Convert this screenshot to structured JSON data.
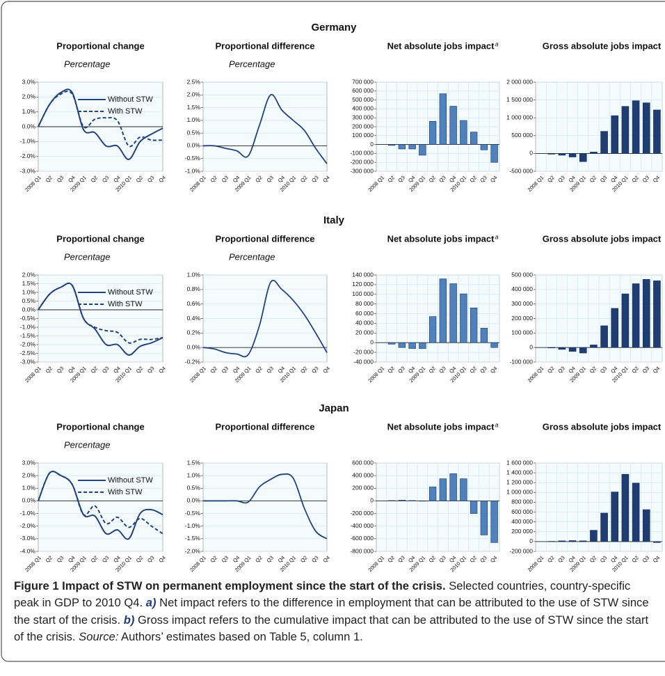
{
  "sections": [
    {
      "title": "Germany"
    },
    {
      "title": "Italy"
    },
    {
      "title": "Japan"
    }
  ],
  "chart_data": [
    {
      "type": "line",
      "title": "Proportional change",
      "subtitle": "Percentage",
      "legend": "upper right",
      "grid": true,
      "categories": [
        "2008 Q1",
        "Q2",
        "Q3",
        "Q4",
        "2009 Q1",
        "Q2",
        "Q3",
        "Q4",
        "2010 Q1",
        "Q2",
        "Q3",
        "Q4"
      ],
      "series": [
        {
          "name": "Without STW",
          "color": "#26427c",
          "line_style": "solid",
          "values": [
            0,
            1.5,
            2.3,
            2.3,
            -0.2,
            -0.4,
            -1.3,
            -1.3,
            -2.2,
            -1.0,
            -0.5,
            -0.1
          ]
        },
        {
          "name": "With STW",
          "color": "#26427c",
          "line_style": "dashed",
          "values": [
            0,
            1.5,
            2.2,
            2.2,
            0.0,
            0.5,
            0.6,
            0.4,
            -1.3,
            -0.7,
            -0.9,
            -0.9
          ]
        }
      ],
      "ylim": [
        -3,
        3
      ],
      "yticks": [
        {
          "value": -3,
          "label": "-3.0%"
        },
        {
          "value": -2,
          "label": "-2.0%"
        },
        {
          "value": -1,
          "label": "-1.0%"
        },
        {
          "value": 0,
          "label": "0.0%"
        },
        {
          "value": 1,
          "label": "1.0%"
        },
        {
          "value": 2,
          "label": "2.0%"
        },
        {
          "value": 3,
          "label": "3.0%"
        }
      ]
    },
    {
      "type": "line",
      "title": "Proportional difference",
      "subtitle": "Percentage",
      "grid": true,
      "color": "#26427c",
      "categories": [
        "2008 Q1",
        "Q2",
        "Q3",
        "Q4",
        "2009 Q1",
        "Q2",
        "Q3",
        "Q4",
        "2010 Q1",
        "Q2",
        "Q3",
        "Q4"
      ],
      "values": [
        0,
        0,
        -0.1,
        -0.2,
        -0.4,
        0.8,
        2.0,
        1.4,
        1.0,
        0.6,
        -0.1,
        -0.7
      ],
      "ylim": [
        -1,
        2.5
      ],
      "yticks": [
        {
          "value": -1,
          "label": "-1.0%"
        },
        {
          "value": -0.5,
          "label": "-0.5%"
        },
        {
          "value": 0,
          "label": "0.0%"
        },
        {
          "value": 0.5,
          "label": "0.5%"
        },
        {
          "value": 1,
          "label": "1.0%"
        },
        {
          "value": 1.5,
          "label": "1.5%"
        },
        {
          "value": 2,
          "label": "2.0%"
        },
        {
          "value": 2.5,
          "label": "2.5%"
        }
      ]
    },
    {
      "type": "bar",
      "title": "Net absolute jobs impact",
      "title_note": "a",
      "grid": true,
      "color": "#4f81bd",
      "categories": [
        "2008 Q1",
        "Q2",
        "Q3",
        "Q4",
        "2009 Q1",
        "Q2",
        "Q3",
        "Q4",
        "2010 Q1",
        "Q2",
        "Q3",
        "Q4"
      ],
      "values": [
        0,
        -10000,
        -50000,
        -50000,
        -120000,
        260000,
        570000,
        430000,
        270000,
        140000,
        -60000,
        -200000
      ],
      "ylim": [
        -300000,
        700000
      ],
      "yticks": [
        {
          "value": -300000,
          "label": "-300 000"
        },
        {
          "value": -200000,
          "label": "-200 000"
        },
        {
          "value": -100000,
          "label": "-100 000"
        },
        0,
        {
          "value": 100000,
          "label": "100 000"
        },
        {
          "value": 200000,
          "label": "200 000"
        },
        {
          "value": 300000,
          "label": "300 000"
        },
        {
          "value": 400000,
          "label": "400 000"
        },
        {
          "value": 500000,
          "label": "500 000"
        },
        {
          "value": 600000,
          "label": "600 000"
        },
        {
          "value": 700000,
          "label": "700 000"
        }
      ]
    },
    {
      "type": "bar",
      "title": "Gross absolute jobs impact",
      "grid": true,
      "color": "#1f3c73",
      "categories": [
        "2008 Q1",
        "Q2",
        "Q3",
        "Q4",
        "2009 Q1",
        "Q2",
        "Q3",
        "Q4",
        "2010 Q1",
        "Q2",
        "Q3",
        "Q4"
      ],
      "values": [
        0,
        -20000,
        -50000,
        -100000,
        -230000,
        40000,
        620000,
        1060000,
        1320000,
        1480000,
        1420000,
        1220000
      ],
      "ylim": [
        -500000,
        2000000
      ],
      "yticks": [
        {
          "value": -500000,
          "label": "-500 000"
        },
        0,
        {
          "value": 500000,
          "label": "500 000"
        },
        {
          "value": 1000000,
          "label": "1 000 000"
        },
        {
          "value": 1500000,
          "label": "1 500 000"
        },
        {
          "value": 2000000,
          "label": "2 000 000"
        }
      ]
    },
    {
      "type": "line",
      "title": "Proportional change",
      "subtitle": "Percentage",
      "legend": "upper right",
      "grid": true,
      "categories": [
        "2008 Q1",
        "Q2",
        "Q3",
        "Q4",
        "2009 Q1",
        "Q2",
        "Q3",
        "Q4",
        "2010 Q1",
        "Q2",
        "Q3",
        "Q4"
      ],
      "series": [
        {
          "name": "Without STW",
          "color": "#26427c",
          "line_style": "solid",
          "values": [
            0,
            0.9,
            1.3,
            1.4,
            -0.5,
            -1.1,
            -2.0,
            -2.0,
            -2.6,
            -2.1,
            -1.9,
            -1.6
          ]
        },
        {
          "name": "With STW",
          "color": "#26427c",
          "line_style": "dashed",
          "values": [
            0,
            0.9,
            1.3,
            1.4,
            -0.5,
            -1.0,
            -1.2,
            -1.3,
            -1.9,
            -1.7,
            -1.7,
            -1.6
          ]
        }
      ],
      "ylim": [
        -3,
        2
      ],
      "yticks": [
        {
          "value": -3,
          "label": "-3.0%"
        },
        {
          "value": -2.5,
          "label": "-2.5%"
        },
        {
          "value": -2,
          "label": "-2.0%"
        },
        {
          "value": -1.5,
          "label": "-1.5%"
        },
        {
          "value": -1,
          "label": "-1.0%"
        },
        {
          "value": -0.5,
          "label": "-0.5%"
        },
        {
          "value": 0,
          "label": "0.0%"
        },
        {
          "value": 0.5,
          "label": "0.5%"
        },
        {
          "value": 1,
          "label": "1.0%"
        },
        {
          "value": 1.5,
          "label": "1.5%"
        },
        {
          "value": 2,
          "label": "2.0%"
        }
      ]
    },
    {
      "type": "line",
      "title": "Proportional difference",
      "subtitle": "Percentage",
      "grid": true,
      "color": "#26427c",
      "categories": [
        "2008 Q1",
        "Q2",
        "Q3",
        "Q4",
        "2009 Q1",
        "Q2",
        "Q3",
        "Q4",
        "2010 Q1",
        "Q2",
        "Q3",
        "Q4"
      ],
      "values": [
        0,
        -0.02,
        -0.07,
        -0.09,
        -0.1,
        0.3,
        0.9,
        0.8,
        0.65,
        0.45,
        0.2,
        -0.07
      ],
      "ylim": [
        -0.2,
        1
      ],
      "yticks": [
        {
          "value": -0.2,
          "label": "-0.2%"
        },
        {
          "value": 0,
          "label": "0.0%"
        },
        {
          "value": 0.2,
          "label": "0.2%"
        },
        {
          "value": 0.4,
          "label": "0.4%"
        },
        {
          "value": 0.6,
          "label": "0.6%"
        },
        {
          "value": 0.8,
          "label": "0.8%"
        },
        {
          "value": 1,
          "label": "1.0%"
        }
      ]
    },
    {
      "type": "bar",
      "title": "Net absolute jobs impact",
      "title_note": "a",
      "grid": true,
      "color": "#4f81bd",
      "categories": [
        "2008 Q1",
        "Q2",
        "Q3",
        "Q4",
        "2009 Q1",
        "Q2",
        "Q3",
        "Q4",
        "2010 Q1",
        "Q2",
        "Q3",
        "Q4"
      ],
      "values": [
        0,
        -3000,
        -10000,
        -12000,
        -12000,
        54000,
        132000,
        122000,
        101000,
        72000,
        30000,
        -10000
      ],
      "ylim": [
        -40000,
        140000
      ],
      "yticks": [
        {
          "value": -40000,
          "label": "-40 000"
        },
        {
          "value": -20000,
          "label": "-20 000"
        },
        0,
        {
          "value": 20000,
          "label": "20 000"
        },
        {
          "value": 40000,
          "label": "40 000"
        },
        {
          "value": 60000,
          "label": "60 000"
        },
        {
          "value": 80000,
          "label": "80 000"
        },
        {
          "value": 100000,
          "label": "100 000"
        },
        {
          "value": 120000,
          "label": "120 000"
        },
        {
          "value": 140000,
          "label": "140 000"
        }
      ]
    },
    {
      "type": "bar",
      "title": "Gross absolute jobs impact",
      "grid": true,
      "color": "#1f3c73",
      "categories": [
        "2008 Q1",
        "Q2",
        "Q3",
        "Q4",
        "2009 Q1",
        "Q2",
        "Q3",
        "Q4",
        "2010 Q1",
        "Q2",
        "Q3",
        "Q4"
      ],
      "values": [
        0,
        -3000,
        -13000,
        -27000,
        -38000,
        18000,
        150000,
        270000,
        370000,
        440000,
        470000,
        460000
      ],
      "ylim": [
        -100000,
        500000
      ],
      "yticks": [
        {
          "value": -100000,
          "label": "-100 000"
        },
        0,
        {
          "value": 100000,
          "label": "100 000"
        },
        {
          "value": 200000,
          "label": "200 000"
        },
        {
          "value": 300000,
          "label": "300 000"
        },
        {
          "value": 400000,
          "label": "400 000"
        },
        {
          "value": 500000,
          "label": "500 000"
        }
      ]
    },
    {
      "type": "line",
      "title": "Proportional change",
      "subtitle": "Percentage",
      "legend": "upper right",
      "grid": true,
      "categories": [
        "2008 Q1",
        "Q2",
        "Q3",
        "Q4",
        "2009 Q1",
        "Q2",
        "Q3",
        "Q4",
        "2010 Q1",
        "Q2",
        "Q3",
        "Q4"
      ],
      "series": [
        {
          "name": "Without STW",
          "color": "#26427c",
          "line_style": "solid",
          "values": [
            0,
            2.2,
            2.0,
            1.3,
            -1.1,
            -1.2,
            -2.6,
            -2.3,
            -3.0,
            -1.0,
            -0.7,
            -1.1
          ]
        },
        {
          "name": "With STW",
          "color": "#26427c",
          "line_style": "dashed",
          "values": [
            0,
            2.2,
            2.0,
            1.3,
            -1.1,
            -0.4,
            -1.8,
            -1.3,
            -2.1,
            -1.4,
            -2.0,
            -2.6
          ]
        }
      ],
      "ylim": [
        -4,
        3
      ],
      "yticks": [
        {
          "value": -4,
          "label": "-4.0%"
        },
        {
          "value": -3,
          "label": "-3.0%"
        },
        {
          "value": -2,
          "label": "-2.0%"
        },
        {
          "value": -1,
          "label": "-1.0%"
        },
        {
          "value": 0,
          "label": "0.0%"
        },
        {
          "value": 1,
          "label": "1.0%"
        },
        {
          "value": 2,
          "label": "2.0%"
        },
        {
          "value": 3,
          "label": "3.0%"
        }
      ]
    },
    {
      "type": "line",
      "title": "Proportional difference",
      "grid": true,
      "color": "#26427c",
      "categories": [
        "2008 Q1",
        "Q2",
        "Q3",
        "Q4",
        "2009 Q1",
        "Q2",
        "Q3",
        "Q4",
        "2010 Q1",
        "Q2",
        "Q3",
        "Q4"
      ],
      "values": [
        0,
        0,
        0,
        0,
        -0.05,
        0.55,
        0.85,
        1.05,
        0.9,
        -0.3,
        -1.2,
        -1.5
      ],
      "ylim": [
        -2,
        1.5
      ],
      "yticks": [
        {
          "value": -2,
          "label": "-2.0%"
        },
        {
          "value": -1.5,
          "label": "-1.5%"
        },
        {
          "value": -1,
          "label": "-1.0%"
        },
        {
          "value": -0.5,
          "label": "-0.5%"
        },
        {
          "value": 0,
          "label": "0.0%"
        },
        {
          "value": 0.5,
          "label": "0.5%"
        },
        {
          "value": 1,
          "label": "1.0%"
        },
        {
          "value": 1.5,
          "label": "1.5%"
        }
      ]
    },
    {
      "type": "bar",
      "title": "Net absolute jobs impact",
      "title_note": "a",
      "grid": true,
      "color": "#4f81bd",
      "categories": [
        "2008 Q1",
        "Q2",
        "Q3",
        "Q4",
        "2009 Q1",
        "Q2",
        "Q3",
        "Q4",
        "2010 Q1",
        "Q2",
        "Q3",
        "Q4"
      ],
      "values": [
        0,
        5000,
        10000,
        5000,
        -5000,
        220000,
        350000,
        430000,
        350000,
        -200000,
        -540000,
        -660000
      ],
      "ylim": [
        -800000,
        600000
      ],
      "yticks": [
        {
          "value": -800000,
          "label": "-800 000"
        },
        {
          "value": -600000,
          "label": "-600 000"
        },
        {
          "value": -400000,
          "label": "-400 000"
        },
        {
          "value": -200000,
          "label": "-200 000"
        },
        0,
        {
          "value": 200000,
          "label": "200 000"
        },
        {
          "value": 400000,
          "label": "400 000"
        },
        {
          "value": 600000,
          "label": "600 000"
        }
      ]
    },
    {
      "type": "bar",
      "title": "Gross absolute jobs impact",
      "grid": true,
      "color": "#1f3c73",
      "categories": [
        "2008 Q1",
        "Q2",
        "Q3",
        "Q4",
        "2009 Q1",
        "Q2",
        "Q3",
        "Q4",
        "2010 Q1",
        "Q2",
        "Q3",
        "Q4"
      ],
      "values": [
        0,
        5000,
        15000,
        20000,
        15000,
        230000,
        580000,
        1010000,
        1370000,
        1190000,
        650000,
        -20000
      ],
      "ylim": [
        -200000,
        1600000
      ],
      "yticks": [
        {
          "value": -200000,
          "label": "-200 000"
        },
        0,
        {
          "value": 200000,
          "label": "200 000"
        },
        {
          "value": 400000,
          "label": "400 000"
        },
        {
          "value": 600000,
          "label": "600 000"
        },
        {
          "value": 800000,
          "label": "800 000"
        },
        {
          "value": 1000000,
          "label": "1 000 000"
        },
        {
          "value": 1200000,
          "label": "1 200 000"
        },
        {
          "value": 1400000,
          "label": "1 400 000"
        },
        {
          "value": 1600000,
          "label": "1 600 000"
        }
      ]
    }
  ],
  "caption": {
    "label": "Figure 1",
    "title": "Impact of STW on permanent employment since the start of the crisis.",
    "text": "Selected countries, country-specific peak in GDP to 2010 Q4.",
    "note_a_marker": "a)",
    "note_a": "Net impact refers to the difference in employment that can be attributed to the use of STW since the start of the crisis.",
    "note_b_marker": "b)",
    "note_b": "Gross impact refers to the cumulative impact that can be attributed to the use of STW since the start of the crisis.",
    "source_label": "Source:",
    "source": "Authors’ estimates based on Table 5, column 1."
  }
}
